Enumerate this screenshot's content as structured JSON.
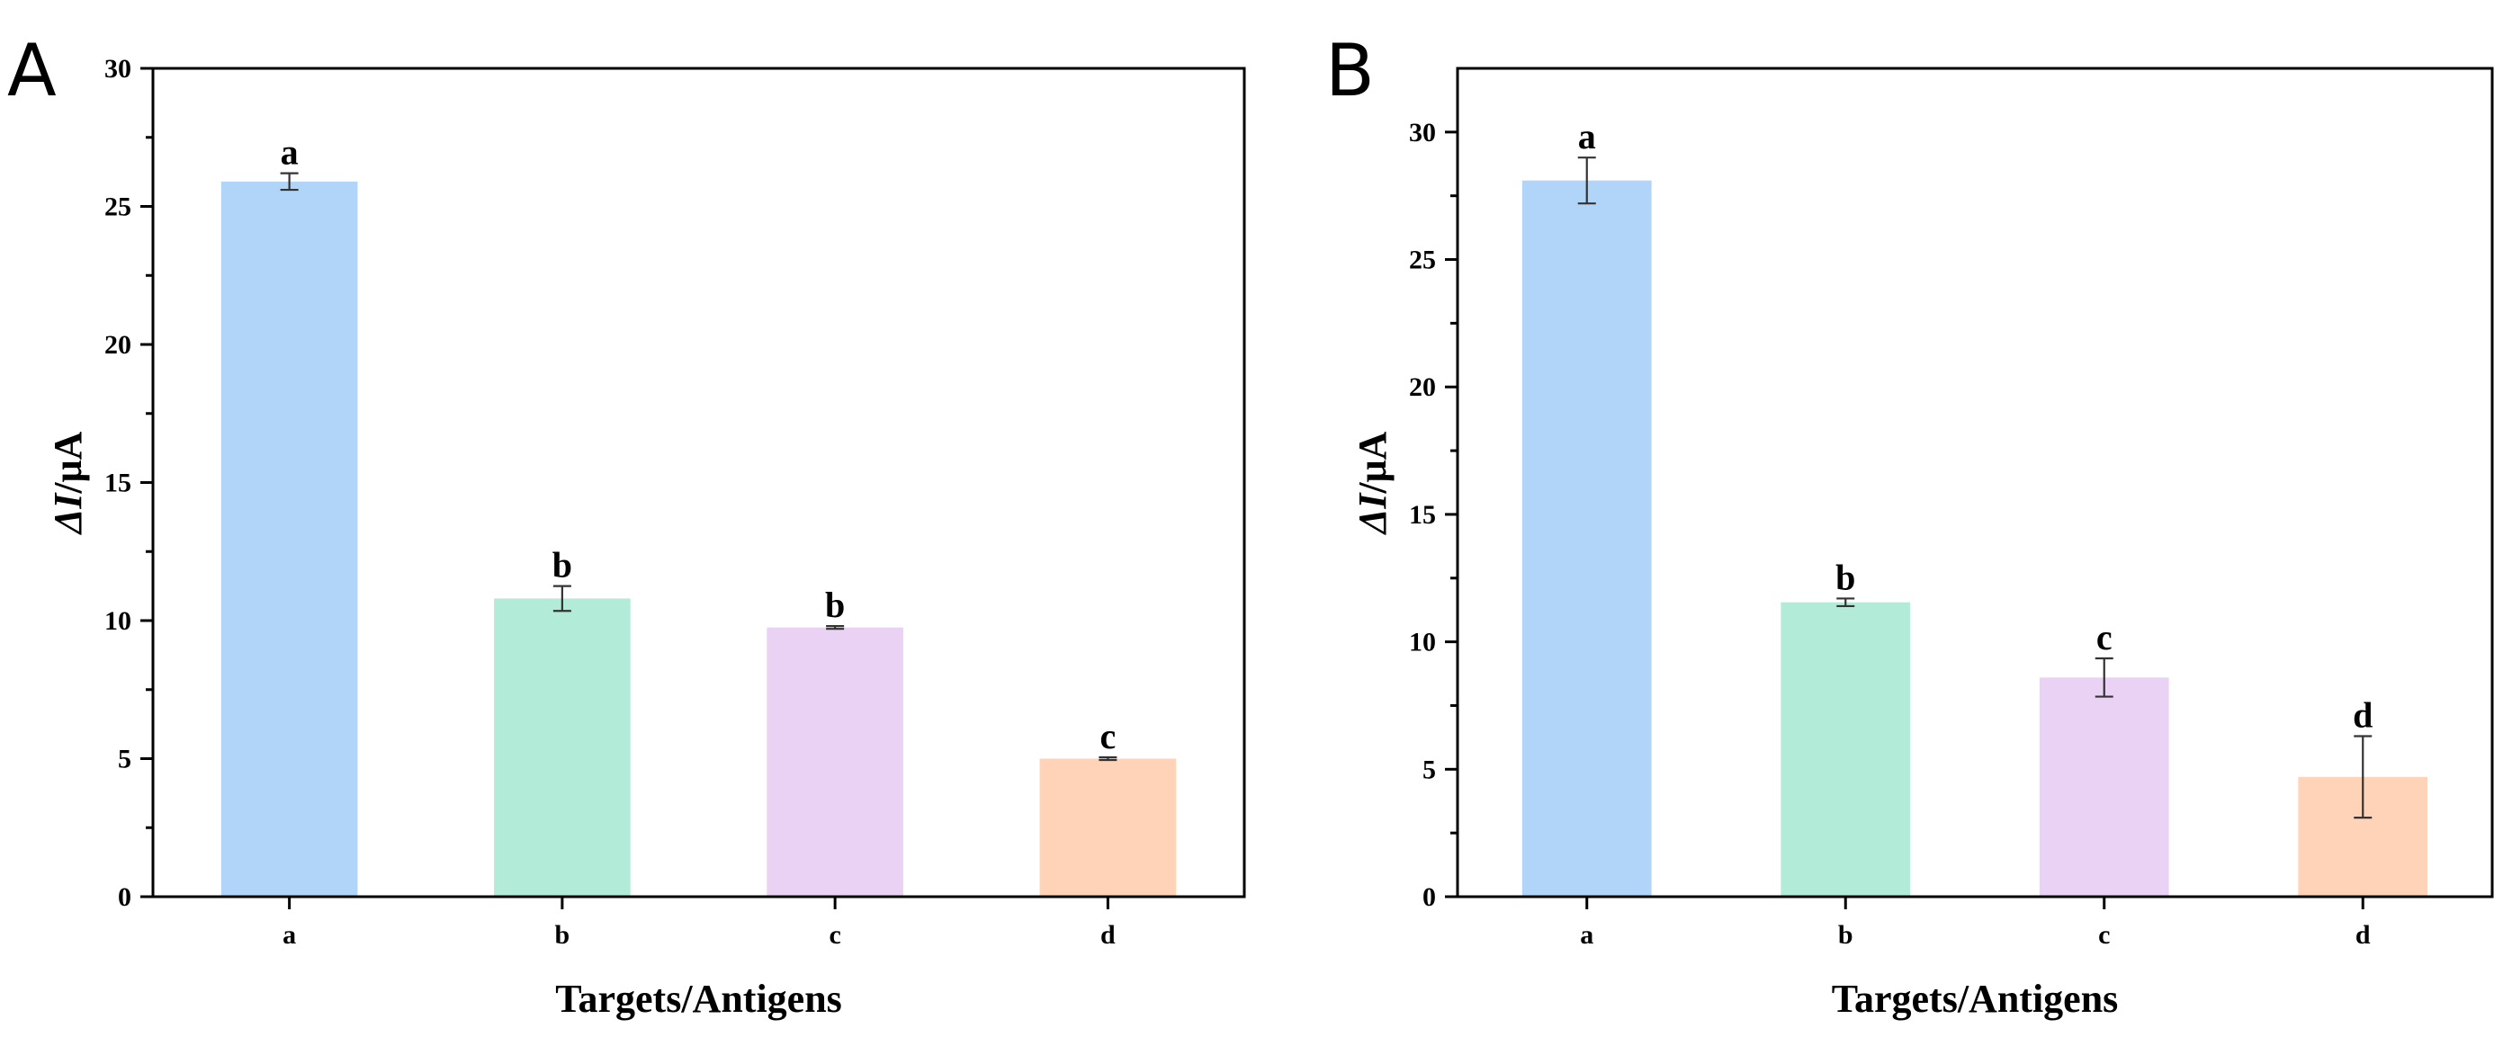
{
  "chart_data": [
    {
      "type": "bar",
      "panel_label": "A",
      "categories": [
        "a",
        "b",
        "c",
        "d"
      ],
      "values": [
        25.9,
        10.8,
        9.75,
        5.0
      ],
      "errors": [
        0.3,
        0.45,
        0.05,
        0.05
      ],
      "significance_labels": [
        "a",
        "b",
        "b",
        "c"
      ],
      "colors": [
        "#b1d5f8",
        "#b2ecd9",
        "#ead2f4",
        "#fed3b7"
      ],
      "title": "",
      "xlabel": "Targets/Antigens",
      "ylabel_italic": "ΔI",
      "ylabel_unit": "/μA",
      "ylim": [
        0,
        30
      ],
      "yticks": [
        0,
        5,
        10,
        15,
        20,
        25,
        30
      ]
    },
    {
      "type": "bar",
      "panel_label": "B",
      "categories": [
        "a",
        "b",
        "c",
        "d"
      ],
      "values": [
        28.1,
        11.55,
        8.6,
        4.7
      ],
      "errors": [
        0.9,
        0.15,
        0.75,
        1.6
      ],
      "significance_labels": [
        "a",
        "b",
        "c",
        "d"
      ],
      "colors": [
        "#b1d5f8",
        "#b2ecd9",
        "#ead2f4",
        "#fed3b7"
      ],
      "title": "",
      "xlabel": "Targets/Antigens",
      "ylabel_italic": "ΔI",
      "ylabel_unit": "/μA",
      "ylim": [
        0,
        32.5
      ],
      "yticks": [
        0,
        5,
        10,
        15,
        20,
        25,
        30
      ]
    }
  ]
}
